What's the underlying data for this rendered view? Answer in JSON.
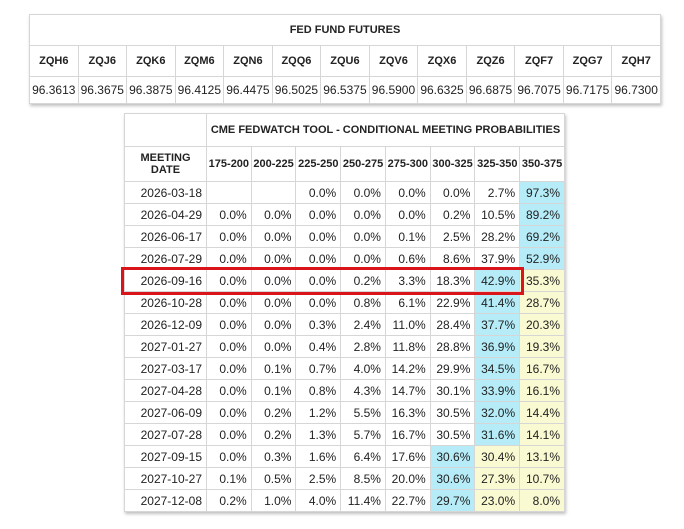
{
  "futures": {
    "title": "FED FUND FUTURES",
    "codes": [
      "ZQH6",
      "ZQJ6",
      "ZQK6",
      "ZQM6",
      "ZQN6",
      "ZQQ6",
      "ZQU6",
      "ZQV6",
      "ZQX6",
      "ZQZ6",
      "ZQF7",
      "ZQG7",
      "ZQH7"
    ],
    "prices": [
      "96.3613",
      "96.3675",
      "96.3875",
      "96.4125",
      "96.4475",
      "96.5025",
      "96.5375",
      "96.5900",
      "96.6325",
      "96.6875",
      "96.7075",
      "96.7175",
      "96.7300"
    ]
  },
  "fedwatch": {
    "title": "CME FEDWATCH TOOL - CONDITIONAL MEETING PROBABILITIES",
    "date_header": "MEETING DATE",
    "ranges": [
      "175-200",
      "200-225",
      "225-250",
      "250-275",
      "275-300",
      "300-325",
      "325-350",
      "350-375"
    ],
    "colors": {
      "max": "#b5ecf8",
      "above_max": "#fafad2",
      "selected_outline": "#d9141a"
    },
    "selected_row": "2026-09-16",
    "rows": [
      {
        "date": "2026-03-18",
        "values": [
          "",
          "",
          "0.0%",
          "0.0%",
          "0.0%",
          "0.0%",
          "2.7%",
          "97.3%"
        ],
        "max_col": 7
      },
      {
        "date": "2026-04-29",
        "values": [
          "0.0%",
          "0.0%",
          "0.0%",
          "0.0%",
          "0.0%",
          "0.2%",
          "10.5%",
          "89.2%"
        ],
        "max_col": 7
      },
      {
        "date": "2026-06-17",
        "values": [
          "0.0%",
          "0.0%",
          "0.0%",
          "0.0%",
          "0.1%",
          "2.5%",
          "28.2%",
          "69.2%"
        ],
        "max_col": 7
      },
      {
        "date": "2026-07-29",
        "values": [
          "0.0%",
          "0.0%",
          "0.0%",
          "0.0%",
          "0.6%",
          "8.6%",
          "37.9%",
          "52.9%"
        ],
        "max_col": 7
      },
      {
        "date": "2026-09-16",
        "values": [
          "0.0%",
          "0.0%",
          "0.0%",
          "0.2%",
          "3.3%",
          "18.3%",
          "42.9%",
          "35.3%"
        ],
        "max_col": 6
      },
      {
        "date": "2026-10-28",
        "values": [
          "0.0%",
          "0.0%",
          "0.0%",
          "0.8%",
          "6.1%",
          "22.9%",
          "41.4%",
          "28.7%"
        ],
        "max_col": 6
      },
      {
        "date": "2026-12-09",
        "values": [
          "0.0%",
          "0.0%",
          "0.3%",
          "2.4%",
          "11.0%",
          "28.4%",
          "37.7%",
          "20.3%"
        ],
        "max_col": 6
      },
      {
        "date": "2027-01-27",
        "values": [
          "0.0%",
          "0.0%",
          "0.4%",
          "2.8%",
          "11.8%",
          "28.8%",
          "36.9%",
          "19.3%"
        ],
        "max_col": 6
      },
      {
        "date": "2027-03-17",
        "values": [
          "0.0%",
          "0.1%",
          "0.7%",
          "4.0%",
          "14.2%",
          "29.9%",
          "34.5%",
          "16.7%"
        ],
        "max_col": 6
      },
      {
        "date": "2027-04-28",
        "values": [
          "0.0%",
          "0.1%",
          "0.8%",
          "4.3%",
          "14.7%",
          "30.1%",
          "33.9%",
          "16.1%"
        ],
        "max_col": 6
      },
      {
        "date": "2027-06-09",
        "values": [
          "0.0%",
          "0.2%",
          "1.2%",
          "5.5%",
          "16.3%",
          "30.5%",
          "32.0%",
          "14.4%"
        ],
        "max_col": 6
      },
      {
        "date": "2027-07-28",
        "values": [
          "0.0%",
          "0.2%",
          "1.3%",
          "5.7%",
          "16.7%",
          "30.5%",
          "31.6%",
          "14.1%"
        ],
        "max_col": 6
      },
      {
        "date": "2027-09-15",
        "values": [
          "0.0%",
          "0.3%",
          "1.6%",
          "6.4%",
          "17.6%",
          "30.6%",
          "30.4%",
          "13.1%"
        ],
        "max_col": 5
      },
      {
        "date": "2027-10-27",
        "values": [
          "0.1%",
          "0.5%",
          "2.5%",
          "8.5%",
          "20.0%",
          "30.6%",
          "27.3%",
          "10.7%"
        ],
        "max_col": 5
      },
      {
        "date": "2027-12-08",
        "values": [
          "0.2%",
          "1.0%",
          "4.0%",
          "11.4%",
          "22.7%",
          "29.7%",
          "23.0%",
          "8.0%"
        ],
        "max_col": 5
      }
    ]
  }
}
